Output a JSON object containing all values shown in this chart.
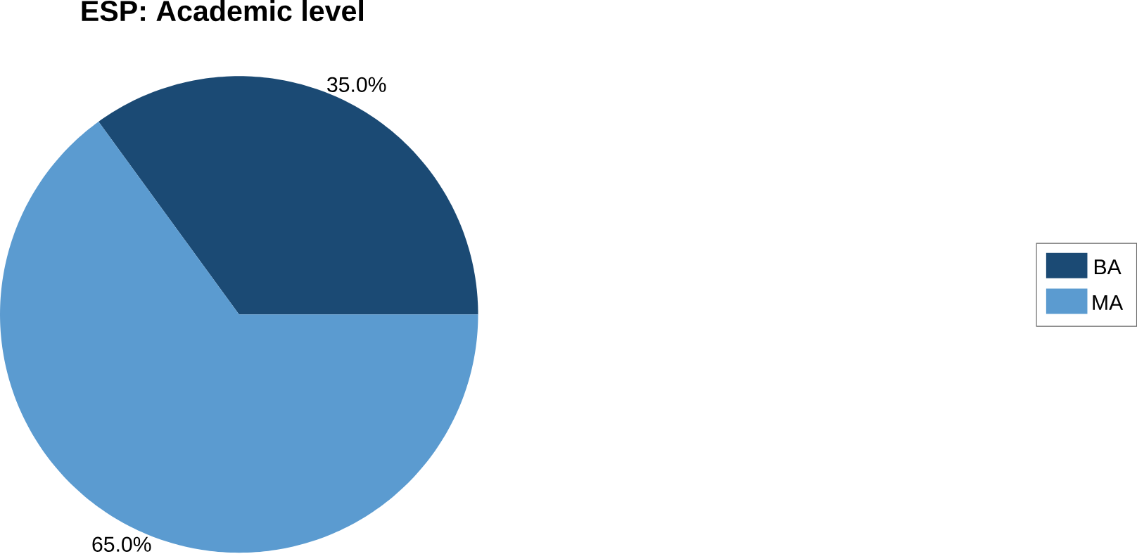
{
  "chart_data": {
    "type": "pie",
    "title": "ESP: Academic level",
    "categories": [
      "BA",
      "MA"
    ],
    "values": [
      35,
      65
    ],
    "colors": [
      "#1b4a74",
      "#5b9bd0"
    ],
    "value_labels": [
      "35.0%",
      "65.0%"
    ],
    "legend": "right"
  }
}
